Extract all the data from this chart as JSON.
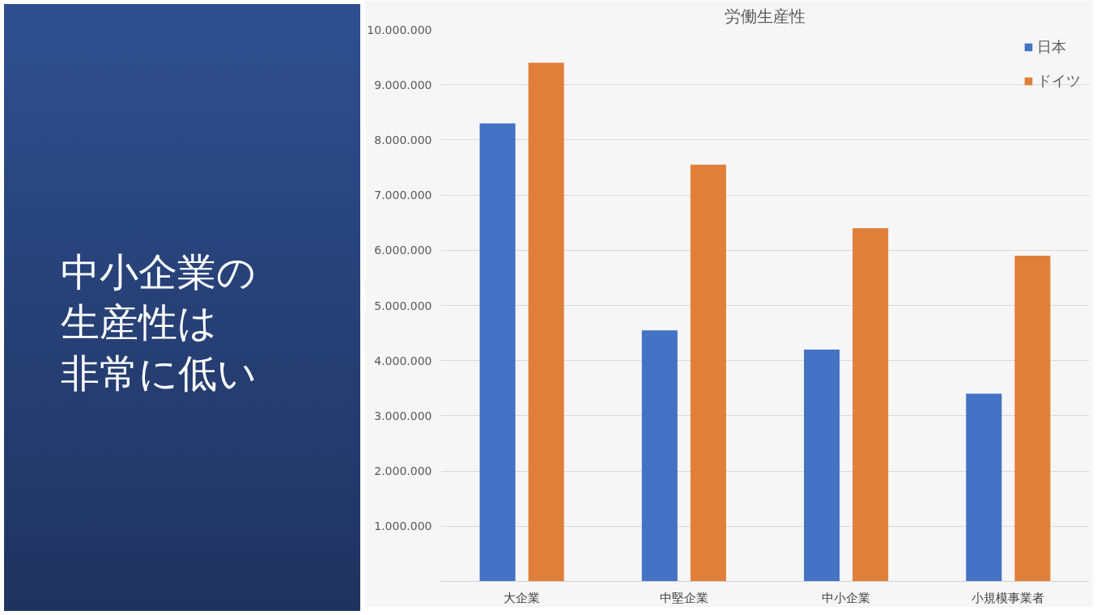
{
  "chart_data": {
    "type": "bar",
    "title": "労働生産性",
    "annotations": [
      "中小企業の",
      "生産性は",
      "非常に低い"
    ],
    "categories": [
      "大企業",
      "中堅企業",
      "中小企業",
      "小規模事業者"
    ],
    "series": [
      {
        "name": "日本",
        "color": "#4472c4",
        "values": [
          8300000,
          4550000,
          4200000,
          3400000
        ]
      },
      {
        "name": "ドイツ",
        "color": "#e07f3a",
        "values": [
          9400000,
          7550000,
          6400000,
          5900000
        ]
      }
    ],
    "ylim": [
      0,
      10000000
    ],
    "yticks": [
      {
        "value": 0,
        "label": null
      },
      {
        "value": 1000000,
        "label": "1.000.000"
      },
      {
        "value": 2000000,
        "label": "2.000.000"
      },
      {
        "value": 3000000,
        "label": "3.000.000"
      },
      {
        "value": 4000000,
        "label": "4.000.000"
      },
      {
        "value": 5000000,
        "label": "5.000.000"
      },
      {
        "value": 6000000,
        "label": "6.000.000"
      },
      {
        "value": 7000000,
        "label": "7.000.000"
      },
      {
        "value": 8000000,
        "label": "8.000.000"
      },
      {
        "value": 9000000,
        "label": "9.000.000"
      },
      {
        "value": 10000000,
        "label": "10.000.000"
      }
    ],
    "grid": "y",
    "legend": "top right"
  }
}
